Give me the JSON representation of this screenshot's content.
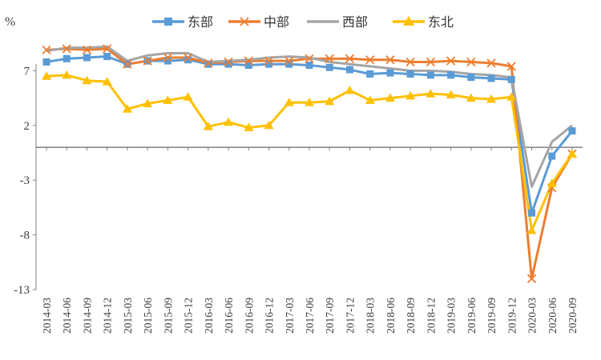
{
  "chart_data": {
    "type": "line",
    "unit": "%",
    "categories": [
      "2014-03",
      "2014-06",
      "2014-09",
      "2014-12",
      "2015-03",
      "2015-06",
      "2015-09",
      "2015-12",
      "2016-03",
      "2016-06",
      "2016-09",
      "2016-12",
      "2017-03",
      "2017-06",
      "2017-09",
      "2017-12",
      "2018-03",
      "2018-06",
      "2018-09",
      "2018-12",
      "2019-03",
      "2019-06",
      "2019-09",
      "2019-12",
      "2020-03",
      "2020-06",
      "2020-09"
    ],
    "y_ticks": [
      7,
      2,
      -3,
      -8,
      -13
    ],
    "ylim": [
      -13,
      12
    ],
    "grid": false,
    "legend_position": "top",
    "series": [
      {
        "name": "东部",
        "color": "#5B9BD5",
        "marker": "square",
        "values": [
          7.8,
          8.1,
          8.2,
          8.3,
          7.6,
          7.9,
          7.9,
          8.0,
          7.6,
          7.6,
          7.5,
          7.6,
          7.6,
          7.5,
          7.3,
          7.1,
          6.7,
          6.8,
          6.7,
          6.6,
          6.6,
          6.4,
          6.3,
          6.2,
          -6.0,
          -0.8,
          1.5
        ]
      },
      {
        "name": "中部",
        "color": "#ED7D31",
        "marker": "x",
        "values": [
          8.9,
          9.0,
          8.9,
          9.0,
          7.6,
          7.9,
          8.2,
          8.2,
          7.7,
          7.8,
          7.9,
          7.9,
          7.9,
          8.1,
          8.1,
          8.1,
          8.0,
          8.0,
          7.8,
          7.8,
          7.9,
          7.8,
          7.7,
          7.4,
          -12.0,
          -3.7,
          -0.6
        ]
      },
      {
        "name": "西部",
        "color": "#A5A5A5",
        "marker": "none",
        "values": [
          8.8,
          9.1,
          9.1,
          9.2,
          7.9,
          8.4,
          8.6,
          8.6,
          7.8,
          7.9,
          8.0,
          8.2,
          8.3,
          8.2,
          7.8,
          7.6,
          7.4,
          7.2,
          7.0,
          7.0,
          6.9,
          6.7,
          6.6,
          6.4,
          -3.6,
          0.5,
          2.0
        ]
      },
      {
        "name": "东北",
        "color": "#FFC000",
        "marker": "triangle",
        "values": [
          6.5,
          6.6,
          6.1,
          6.0,
          3.5,
          4.0,
          4.3,
          4.6,
          1.9,
          2.3,
          1.8,
          2.0,
          4.1,
          4.1,
          4.2,
          5.2,
          4.3,
          4.5,
          4.7,
          4.9,
          4.8,
          4.5,
          4.4,
          4.6,
          -7.6,
          -3.3,
          -0.6
        ]
      }
    ]
  }
}
